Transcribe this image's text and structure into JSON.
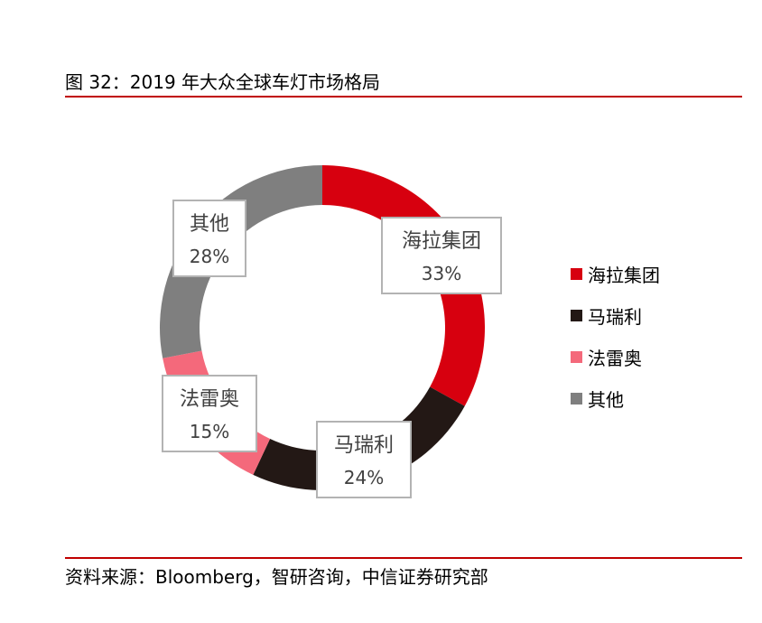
{
  "figure": {
    "title": "图 32：2019 年大众全球车灯市场格局",
    "source": "资料来源：Bloomberg，智研咨询，中信证券研究部"
  },
  "chart_data": {
    "type": "pie",
    "donut": true,
    "categories": [
      "海拉集团",
      "马瑞利",
      "法雷奥",
      "其他"
    ],
    "values": [
      33,
      24,
      15,
      28
    ],
    "labels": [
      "33%",
      "24%",
      "15%",
      "28%"
    ],
    "colors": [
      "#d7000f",
      "#231815",
      "#f4697b",
      "#7f7f7f"
    ],
    "legend_position": "right"
  }
}
